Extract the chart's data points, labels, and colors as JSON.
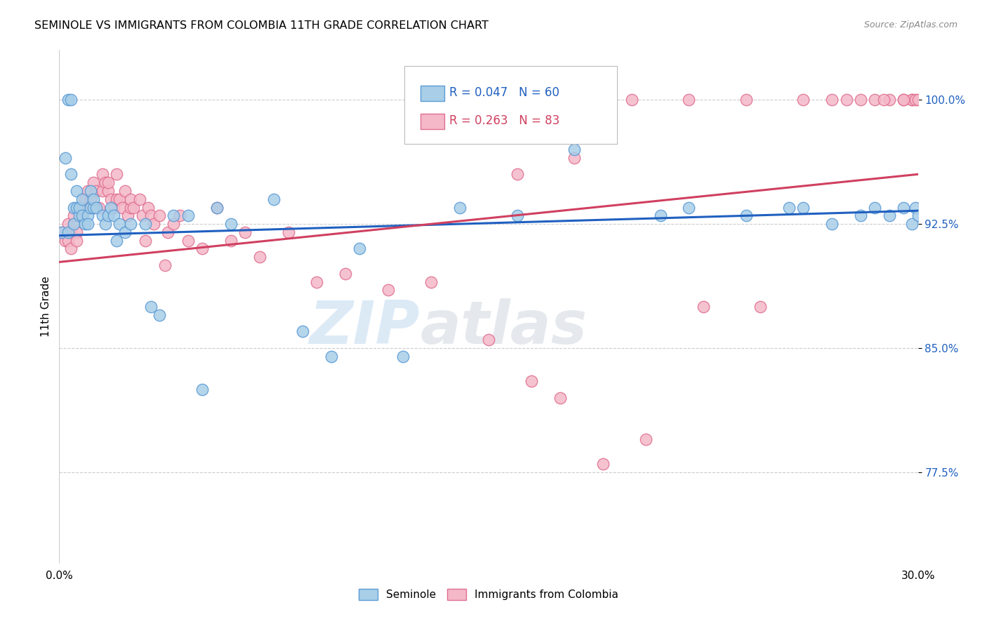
{
  "title": "SEMINOLE VS IMMIGRANTS FROM COLOMBIA 11TH GRADE CORRELATION CHART",
  "source": "Source: ZipAtlas.com",
  "ylabel": "11th Grade",
  "yticks": [
    77.5,
    85.0,
    92.5,
    100.0
  ],
  "ytick_labels": [
    "77.5%",
    "85.0%",
    "92.5%",
    "100.0%"
  ],
  "xmin": 0.0,
  "xmax": 30.0,
  "ymin": 72.0,
  "ymax": 103.0,
  "seminole_color": "#A8CEE8",
  "seminole_edge_color": "#5B9BD5",
  "colombia_color": "#F4B8C8",
  "colombia_edge_color": "#E07090",
  "seminole_line_color": "#2060C0",
  "colombia_line_color": "#D04060",
  "legend_seminole_R": "R = 0.047",
  "legend_seminole_N": "N = 60",
  "legend_colombia_R": "R = 0.263",
  "legend_colombia_N": "N = 83",
  "seminole_x": [
    0.1,
    0.2,
    0.3,
    0.3,
    0.4,
    0.4,
    0.5,
    0.5,
    0.6,
    0.6,
    0.7,
    0.7,
    0.8,
    0.8,
    0.9,
    1.0,
    1.0,
    1.1,
    1.1,
    1.2,
    1.2,
    1.3,
    1.5,
    1.6,
    1.7,
    1.8,
    1.9,
    2.0,
    2.1,
    2.3,
    2.5,
    3.0,
    3.2,
    3.5,
    4.0,
    4.5,
    5.0,
    5.5,
    6.0,
    7.5,
    8.5,
    9.5,
    10.5,
    12.0,
    14.0,
    16.0,
    18.0,
    21.0,
    22.0,
    24.0,
    25.5,
    26.0,
    27.0,
    28.0,
    28.5,
    29.0,
    29.5,
    29.8,
    29.9,
    30.0
  ],
  "seminole_y": [
    92.0,
    96.5,
    92.0,
    100.0,
    95.5,
    100.0,
    92.5,
    93.5,
    93.5,
    94.5,
    93.0,
    93.5,
    93.0,
    94.0,
    92.5,
    93.0,
    92.5,
    94.5,
    93.5,
    93.5,
    94.0,
    93.5,
    93.0,
    92.5,
    93.0,
    93.5,
    93.0,
    91.5,
    92.5,
    92.0,
    92.5,
    92.5,
    87.5,
    87.0,
    93.0,
    93.0,
    82.5,
    93.5,
    92.5,
    94.0,
    86.0,
    84.5,
    91.0,
    84.5,
    93.5,
    93.0,
    97.0,
    93.0,
    93.5,
    93.0,
    93.5,
    93.5,
    92.5,
    93.0,
    93.5,
    93.0,
    93.5,
    92.5,
    93.5,
    93.0
  ],
  "colombia_x": [
    0.1,
    0.2,
    0.3,
    0.3,
    0.4,
    0.4,
    0.5,
    0.5,
    0.6,
    0.6,
    0.7,
    0.8,
    0.9,
    1.0,
    1.0,
    1.1,
    1.2,
    1.2,
    1.3,
    1.4,
    1.5,
    1.5,
    1.6,
    1.7,
    1.7,
    1.8,
    1.9,
    2.0,
    2.0,
    2.1,
    2.2,
    2.3,
    2.4,
    2.5,
    2.5,
    2.6,
    2.8,
    2.9,
    3.0,
    3.1,
    3.2,
    3.3,
    3.5,
    3.7,
    3.8,
    4.0,
    4.2,
    4.5,
    5.0,
    5.5,
    6.0,
    6.5,
    7.0,
    8.0,
    9.0,
    10.0,
    11.5,
    13.0,
    15.0,
    16.5,
    17.5,
    19.0,
    20.5,
    22.5,
    24.5,
    27.0,
    28.5,
    29.0,
    29.5,
    29.8,
    29.8,
    29.9,
    30.0,
    29.5,
    28.8,
    28.0,
    27.5,
    26.0,
    24.0,
    22.0,
    20.0,
    18.0,
    16.0
  ],
  "colombia_y": [
    92.0,
    91.5,
    91.5,
    92.5,
    92.0,
    91.0,
    92.5,
    93.0,
    92.0,
    91.5,
    93.5,
    93.0,
    94.0,
    93.5,
    94.5,
    94.0,
    95.0,
    93.5,
    94.5,
    93.5,
    95.5,
    94.5,
    95.0,
    94.5,
    95.0,
    94.0,
    93.5,
    94.0,
    95.5,
    94.0,
    93.5,
    94.5,
    93.0,
    93.5,
    94.0,
    93.5,
    94.0,
    93.0,
    91.5,
    93.5,
    93.0,
    92.5,
    93.0,
    90.0,
    92.0,
    92.5,
    93.0,
    91.5,
    91.0,
    93.5,
    91.5,
    92.0,
    90.5,
    92.0,
    89.0,
    89.5,
    88.5,
    89.0,
    85.5,
    83.0,
    82.0,
    78.0,
    79.5,
    87.5,
    87.5,
    100.0,
    100.0,
    100.0,
    100.0,
    100.0,
    100.0,
    100.0,
    100.0,
    100.0,
    100.0,
    100.0,
    100.0,
    100.0,
    100.0,
    100.0,
    100.0,
    96.5,
    95.5
  ]
}
